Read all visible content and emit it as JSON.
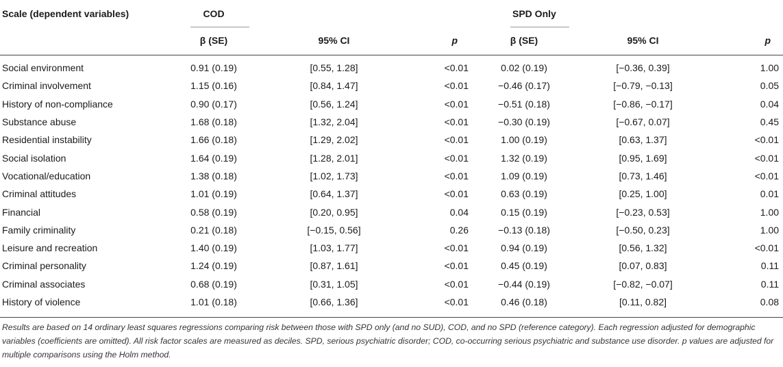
{
  "headers": {
    "scale": "Scale (dependent variables)",
    "cod_group": "COD",
    "spd_group": "SPD Only",
    "beta_se": "β (SE)",
    "ci": "95% CI",
    "p": "p"
  },
  "rows": [
    {
      "scale": "Social environment",
      "cod_beta": "0.91 (0.19)",
      "cod_ci": "[0.55, 1.28]",
      "cod_p": "<0.01",
      "spd_beta": "0.02 (0.19)",
      "spd_ci": "[−0.36, 0.39]",
      "spd_p": "1.00"
    },
    {
      "scale": "Criminal involvement",
      "cod_beta": "1.15 (0.16)",
      "cod_ci": "[0.84, 1.47]",
      "cod_p": "<0.01",
      "spd_beta": "−0.46 (0.17)",
      "spd_ci": "[−0.79, −0.13]",
      "spd_p": "0.05"
    },
    {
      "scale": "History of non-compliance",
      "cod_beta": "0.90 (0.17)",
      "cod_ci": "[0.56, 1.24]",
      "cod_p": "<0.01",
      "spd_beta": "−0.51 (0.18)",
      "spd_ci": "[−0.86, −0.17]",
      "spd_p": "0.04"
    },
    {
      "scale": "Substance abuse",
      "cod_beta": "1.68 (0.18)",
      "cod_ci": "[1.32, 2.04]",
      "cod_p": "<0.01",
      "spd_beta": "−0.30 (0.19)",
      "spd_ci": "[−0.67, 0.07]",
      "spd_p": "0.45"
    },
    {
      "scale": "Residential instability",
      "cod_beta": "1.66 (0.18)",
      "cod_ci": "[1.29, 2.02]",
      "cod_p": "<0.01",
      "spd_beta": "1.00 (0.19)",
      "spd_ci": "[0.63, 1.37]",
      "spd_p": "<0.01"
    },
    {
      "scale": "Social isolation",
      "cod_beta": "1.64 (0.19)",
      "cod_ci": "[1.28, 2.01]",
      "cod_p": "<0.01",
      "spd_beta": "1.32 (0.19)",
      "spd_ci": "[0.95, 1.69]",
      "spd_p": "<0.01"
    },
    {
      "scale": "Vocational/education",
      "cod_beta": "1.38 (0.18)",
      "cod_ci": "[1.02, 1.73]",
      "cod_p": "<0.01",
      "spd_beta": "1.09 (0.19)",
      "spd_ci": "[0.73, 1.46]",
      "spd_p": "<0.01"
    },
    {
      "scale": "Criminal attitudes",
      "cod_beta": "1.01 (0.19)",
      "cod_ci": "[0.64, 1.37]",
      "cod_p": "<0.01",
      "spd_beta": "0.63 (0.19)",
      "spd_ci": "[0.25, 1.00]",
      "spd_p": "0.01"
    },
    {
      "scale": "Financial",
      "cod_beta": "0.58 (0.19)",
      "cod_ci": "[0.20, 0.95]",
      "cod_p": "0.04",
      "spd_beta": "0.15 (0.19)",
      "spd_ci": "[−0.23, 0.53]",
      "spd_p": "1.00"
    },
    {
      "scale": "Family criminality",
      "cod_beta": "0.21 (0.18)",
      "cod_ci": "[−0.15, 0.56]",
      "cod_p": "0.26",
      "spd_beta": "−0.13 (0.18)",
      "spd_ci": "[−0.50, 0.23]",
      "spd_p": "1.00"
    },
    {
      "scale": "Leisure and recreation",
      "cod_beta": "1.40 (0.19)",
      "cod_ci": "[1.03, 1.77]",
      "cod_p": "<0.01",
      "spd_beta": "0.94 (0.19)",
      "spd_ci": "[0.56, 1.32]",
      "spd_p": "<0.01"
    },
    {
      "scale": "Criminal personality",
      "cod_beta": "1.24 (0.19)",
      "cod_ci": "[0.87, 1.61]",
      "cod_p": "<0.01",
      "spd_beta": "0.45 (0.19)",
      "spd_ci": "[0.07, 0.83]",
      "spd_p": "0.11"
    },
    {
      "scale": "Criminal associates",
      "cod_beta": "0.68 (0.19)",
      "cod_ci": "[0.31, 1.05]",
      "cod_p": "<0.01",
      "spd_beta": "−0.44 (0.19)",
      "spd_ci": "[−0.82, −0.07]",
      "spd_p": "0.11"
    },
    {
      "scale": "History of violence",
      "cod_beta": "1.01 (0.18)",
      "cod_ci": "[0.66, 1.36]",
      "cod_p": "<0.01",
      "spd_beta": "0.46 (0.18)",
      "spd_ci": "[0.11, 0.82]",
      "spd_p": "0.08"
    }
  ],
  "footnote": "Results are based on 14 ordinary least squares regressions comparing risk between those with SPD only (and no SUD), COD, and no SPD (reference category). Each regression adjusted for demographic variables (coefficients are omitted). All risk factor scales are measured as deciles. SPD, serious psychiatric disorder; COD, co-occurring serious psychiatric and substance use disorder. p values are adjusted for multiple comparisons using the Holm method."
}
